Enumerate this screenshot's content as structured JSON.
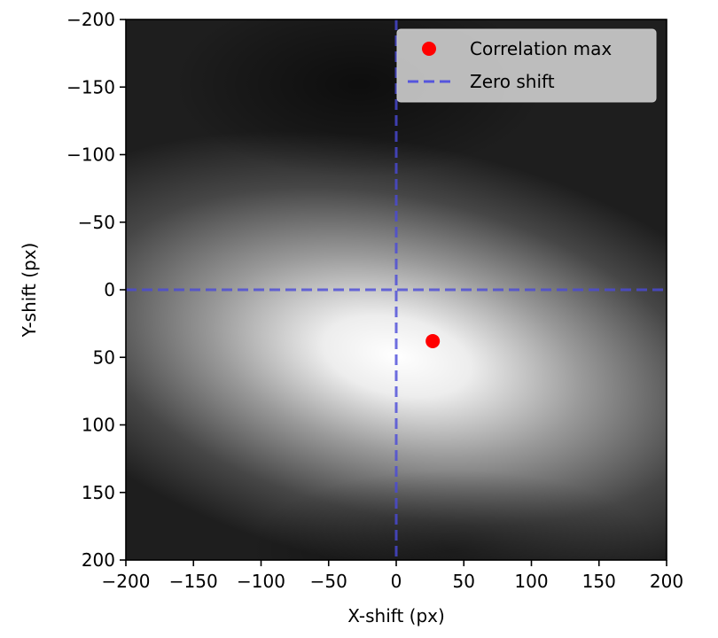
{
  "chart_data": {
    "type": "heatmap",
    "title": "",
    "xlabel": "X-shift (px)",
    "ylabel": "Y-shift (px)",
    "xlim": [
      -200,
      200
    ],
    "ylim": [
      200,
      -200
    ],
    "x_ticks": [
      -200,
      -150,
      -100,
      -50,
      0,
      50,
      100,
      150,
      200
    ],
    "y_ticks": [
      -200,
      -150,
      -100,
      -50,
      0,
      50,
      100,
      150,
      200
    ],
    "x_tick_labels": [
      "−200",
      "−150",
      "−100",
      "−50",
      "0",
      "50",
      "100",
      "150",
      "200"
    ],
    "y_tick_labels": [
      "−200",
      "−150",
      "−100",
      "−50",
      "0",
      "50",
      "100",
      "150",
      "200"
    ],
    "colormap": "gray",
    "peak": {
      "x": 27,
      "y": 38
    },
    "zero_shift": {
      "x": 0,
      "y": 0
    },
    "legend": {
      "location": "upper right",
      "entries": [
        {
          "label": "Correlation max",
          "marker": "circle",
          "color": "#ff0000"
        },
        {
          "label": "Zero shift",
          "linestyle": "dashed",
          "color": "#5555dd"
        }
      ]
    }
  }
}
